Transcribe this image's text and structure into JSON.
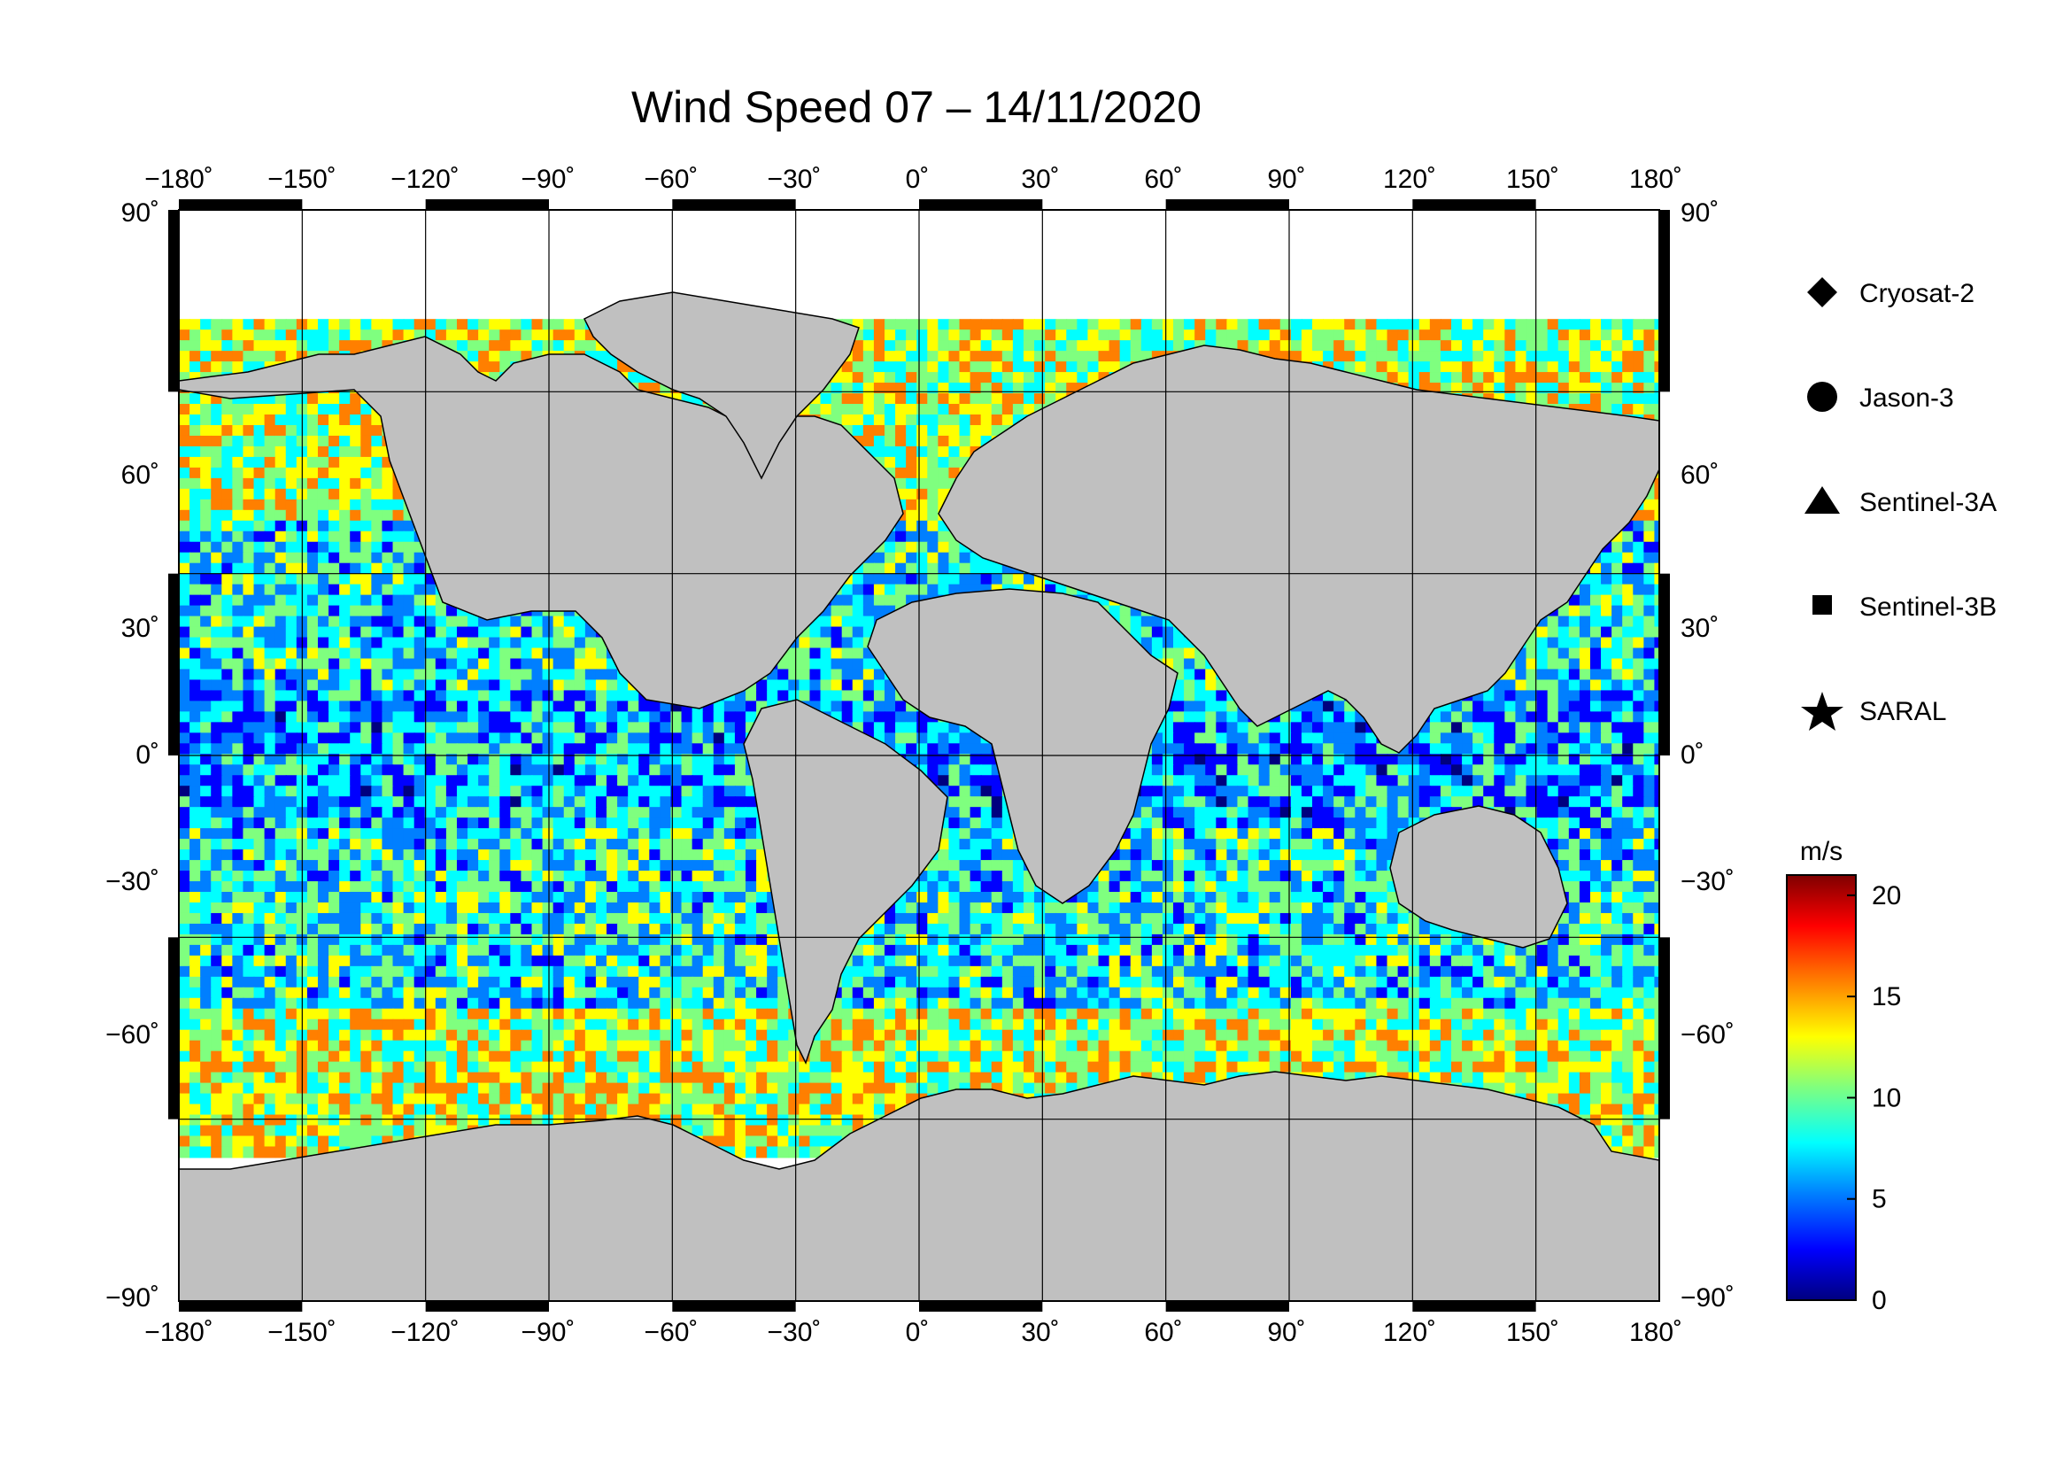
{
  "title": "Wind Speed 07 – 14/11/2020",
  "map": {
    "lon_ticks": [
      "−180˚",
      "−150˚",
      "−120˚",
      "−90˚",
      "−60˚",
      "−30˚",
      "0˚",
      "30˚",
      "60˚",
      "90˚",
      "120˚",
      "150˚",
      "180˚"
    ],
    "lat_ticks_left": [
      "90˚",
      "60˚",
      "30˚",
      "0˚",
      "−30˚",
      "−60˚",
      "−90˚"
    ],
    "lat_ticks_right": [
      "90˚",
      "60˚",
      "30˚",
      "0˚",
      "−30˚",
      "−60˚",
      "−90˚"
    ],
    "lon_values": [
      -180,
      -150,
      -120,
      -90,
      -60,
      -30,
      0,
      30,
      60,
      90,
      120,
      150,
      180
    ],
    "lat_values": [
      90,
      60,
      30,
      0,
      -30,
      -60,
      -90
    ],
    "projection": "equirectangular",
    "land_color": "#c0c0c0",
    "ice_color": "#ffffff",
    "grid": true
  },
  "legend": {
    "items": [
      {
        "label": "Cryosat-2",
        "marker": "diamond"
      },
      {
        "label": "Jason-3",
        "marker": "circle"
      },
      {
        "label": "Sentinel-3A",
        "marker": "triangle"
      },
      {
        "label": "Sentinel-3B",
        "marker": "square"
      },
      {
        "label": "SARAL",
        "marker": "star"
      }
    ]
  },
  "colorbar": {
    "unit": "m/s",
    "ticks": [
      "20",
      "15",
      "10",
      "5",
      "0"
    ],
    "tick_values": [
      20,
      15,
      10,
      5,
      0
    ],
    "min": 0,
    "max": 21,
    "colors": [
      "#00007f",
      "#0000ff",
      "#007fff",
      "#00ffff",
      "#7fff7f",
      "#ffff00",
      "#ff7f00",
      "#ff0000",
      "#7f0000"
    ]
  }
}
